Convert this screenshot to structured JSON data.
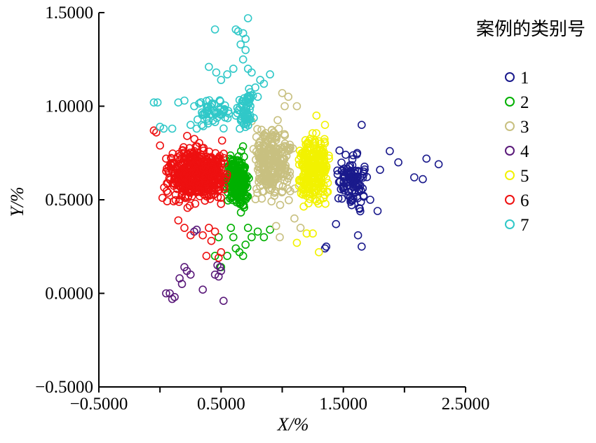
{
  "chart_data": {
    "type": "scatter",
    "marker": "open-circle",
    "xlabel": "X/%",
    "ylabel": "Y/%",
    "xlim": [
      -0.5,
      2.5
    ],
    "ylim": [
      -0.5,
      1.5
    ],
    "xticks": [
      "−0.5000",
      "0.5000",
      "1.5000",
      "2.5000"
    ],
    "xtick_values": [
      -0.5,
      0.5,
      1.5,
      2.5
    ],
    "yticks": [
      "−0.5000",
      "0.0000",
      "0.5000",
      "1.0000",
      "1.5000"
    ],
    "ytick_values": [
      -0.5,
      0.0,
      0.5,
      1.0,
      1.5
    ],
    "grid": false,
    "legend": {
      "title": "案例的类别号",
      "position": "right"
    },
    "series": [
      {
        "name": "1",
        "color": "#1a1a8c",
        "clusters": [
          {
            "x_range": [
              1.42,
              1.72
            ],
            "y_range": [
              0.38,
              0.82
            ],
            "count": 110
          }
        ],
        "points": [
          [
            1.65,
            0.9
          ],
          [
            1.8,
            0.66
          ],
          [
            1.88,
            0.76
          ],
          [
            1.95,
            0.7
          ],
          [
            2.08,
            0.62
          ],
          [
            2.15,
            0.61
          ],
          [
            2.18,
            0.72
          ],
          [
            2.28,
            0.69
          ],
          [
            1.65,
            0.25
          ],
          [
            1.35,
            0.24
          ],
          [
            1.36,
            0.25
          ],
          [
            1.72,
            0.5
          ],
          [
            1.78,
            0.44
          ],
          [
            1.62,
            0.31
          ],
          [
            1.44,
            0.37
          ]
        ]
      },
      {
        "name": "2",
        "color": "#00b000",
        "clusters": [
          {
            "x_range": [
              0.52,
              0.75
            ],
            "y_range": [
              0.4,
              0.8
            ],
            "count": 240
          }
        ],
        "points": [
          [
            0.6,
            0.3
          ],
          [
            0.62,
            0.24
          ],
          [
            0.65,
            0.22
          ],
          [
            0.7,
            0.26
          ],
          [
            0.75,
            0.3
          ],
          [
            0.8,
            0.33
          ],
          [
            0.58,
            0.35
          ],
          [
            0.55,
            0.2
          ],
          [
            0.5,
            0.14
          ],
          [
            0.45,
            0.2
          ],
          [
            0.68,
            0.2
          ],
          [
            0.72,
            0.35
          ],
          [
            0.85,
            0.3
          ],
          [
            0.9,
            0.34
          ],
          [
            0.48,
            0.3
          ]
        ]
      },
      {
        "name": "3",
        "color": "#c8c080",
        "clusters": [
          {
            "x_range": [
              0.72,
              1.12
            ],
            "y_range": [
              0.42,
              0.98
            ],
            "count": 260
          }
        ],
        "points": [
          [
            1.0,
            1.07
          ],
          [
            1.05,
            1.05
          ],
          [
            1.02,
            1.0
          ],
          [
            0.95,
            0.36
          ],
          [
            0.98,
            0.3
          ],
          [
            1.1,
            0.4
          ],
          [
            1.15,
            0.35
          ],
          [
            0.75,
            0.92
          ],
          [
            1.12,
            1.0
          ]
        ]
      },
      {
        "name": "4",
        "color": "#5a1a7a",
        "clusters": [],
        "points": [
          [
            0.05,
            0.0
          ],
          [
            0.08,
            0.0
          ],
          [
            0.1,
            -0.03
          ],
          [
            0.12,
            -0.02
          ],
          [
            0.16,
            0.08
          ],
          [
            0.18,
            0.05
          ],
          [
            0.22,
            0.12
          ],
          [
            0.25,
            0.1
          ],
          [
            0.2,
            0.14
          ],
          [
            0.28,
            0.33
          ],
          [
            0.3,
            0.34
          ],
          [
            0.35,
            0.02
          ],
          [
            0.45,
            0.1
          ],
          [
            0.5,
            0.12
          ],
          [
            0.48,
            0.09
          ],
          [
            0.47,
            0.15
          ],
          [
            0.52,
            -0.04
          ],
          [
            0.49,
            0.14
          ]
        ]
      },
      {
        "name": "5",
        "color": "#f2f200",
        "clusters": [
          {
            "x_range": [
              1.1,
              1.42
            ],
            "y_range": [
              0.38,
              0.94
            ],
            "count": 260
          }
        ],
        "points": [
          [
            1.12,
            0.27
          ],
          [
            1.2,
            0.32
          ],
          [
            1.25,
            0.32
          ],
          [
            1.3,
            0.22
          ],
          [
            1.28,
            0.95
          ],
          [
            1.35,
            0.9
          ]
        ]
      },
      {
        "name": "6",
        "color": "#ee1010",
        "clusters": [
          {
            "x_range": [
              0.0,
              0.6
            ],
            "y_range": [
              0.42,
              0.86
            ],
            "count": 520
          }
        ],
        "points": [
          [
            -0.05,
            0.87
          ],
          [
            -0.03,
            0.86
          ],
          [
            0.0,
            0.79
          ],
          [
            0.05,
            0.72
          ],
          [
            0.02,
            0.51
          ],
          [
            0.4,
            0.35
          ],
          [
            0.45,
            0.33
          ],
          [
            0.38,
            0.2
          ],
          [
            0.42,
            0.28
          ],
          [
            0.48,
            0.19
          ],
          [
            0.5,
            0.22
          ],
          [
            0.35,
            0.31
          ],
          [
            0.25,
            0.31
          ],
          [
            0.2,
            0.35
          ],
          [
            0.15,
            0.39
          ]
        ]
      },
      {
        "name": "7",
        "color": "#30c8c8",
        "clusters": [
          {
            "x_range": [
              0.62,
              0.78
            ],
            "y_range": [
              0.82,
              1.15
            ],
            "count": 60
          },
          {
            "x_range": [
              0.25,
              0.62
            ],
            "y_range": [
              0.83,
              1.12
            ],
            "count": 50
          }
        ],
        "points": [
          [
            0.62,
            1.41
          ],
          [
            0.64,
            1.4
          ],
          [
            0.68,
            1.39
          ],
          [
            0.7,
            1.36
          ],
          [
            0.72,
            1.47
          ],
          [
            0.66,
            1.33
          ],
          [
            0.7,
            1.3
          ],
          [
            0.68,
            1.25
          ],
          [
            0.45,
            1.41
          ],
          [
            0.6,
            1.2
          ],
          [
            0.55,
            1.17
          ],
          [
            0.5,
            1.14
          ],
          [
            0.46,
            1.18
          ],
          [
            0.4,
            1.21
          ],
          [
            0.85,
            1.12
          ],
          [
            0.9,
            1.17
          ],
          [
            0.82,
            1.14
          ],
          [
            0.78,
            1.1
          ],
          [
            0.8,
            1.05
          ],
          [
            -0.05,
            1.02
          ],
          [
            -0.02,
            1.02
          ],
          [
            0.0,
            0.89
          ],
          [
            0.03,
            0.88
          ],
          [
            0.1,
            0.88
          ],
          [
            0.15,
            1.02
          ],
          [
            0.2,
            1.03
          ],
          [
            0.25,
            0.9
          ],
          [
            0.3,
            0.88
          ],
          [
            0.28,
            1.0
          ],
          [
            0.72,
            1.2
          ],
          [
            0.75,
            1.18
          ],
          [
            0.62,
            0.95
          ]
        ]
      }
    ]
  }
}
